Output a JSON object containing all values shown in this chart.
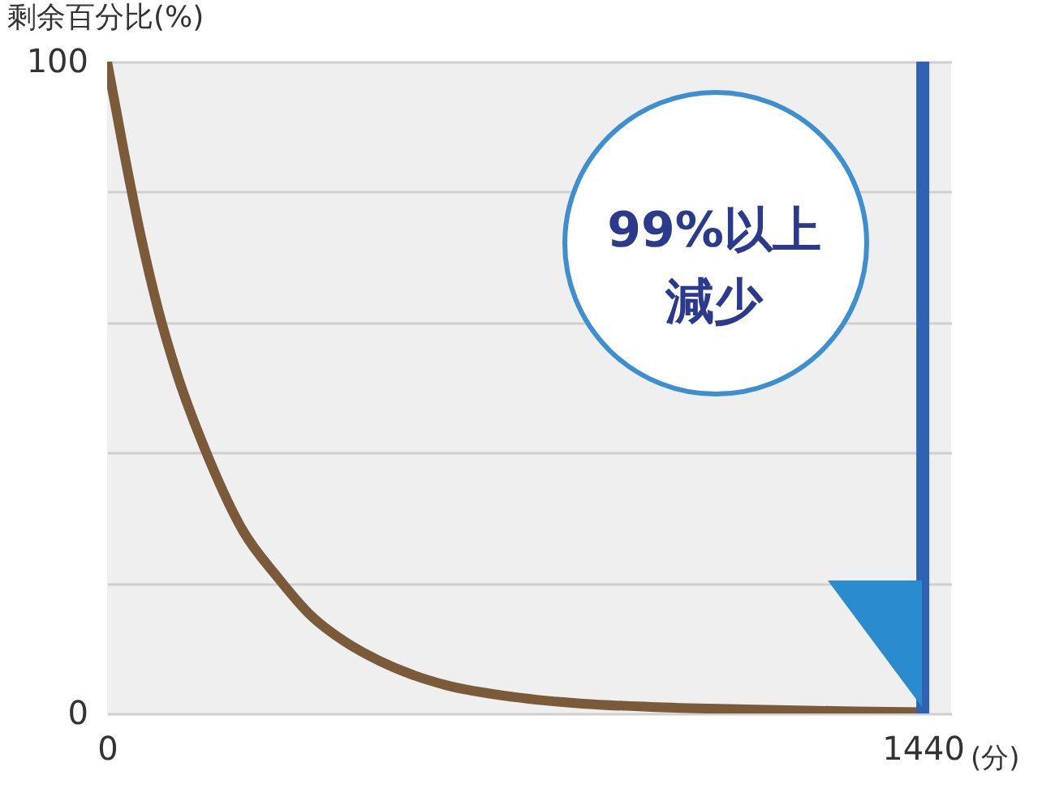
{
  "chart_data": {
    "type": "line",
    "ylabel": "剩余百分比(%)",
    "xlabel": "(分)",
    "x": [
      0,
      30,
      60,
      90,
      120,
      180,
      240,
      300,
      360,
      420,
      480,
      540,
      600,
      720,
      840,
      960,
      1080,
      1200,
      1320,
      1440
    ],
    "series": [
      {
        "color": "#7b5a3a",
        "values": [
          100,
          86,
          73,
          62,
          53,
          39,
          28,
          21,
          15,
          11,
          8.1,
          5.9,
          4.3,
          2.5,
          1.5,
          1.0,
          0.7,
          0.5,
          0.3,
          0.2
        ]
      }
    ],
    "xlim": [
      0,
      1490
    ],
    "xticks": [
      0,
      1440
    ],
    "ylim": [
      0,
      100
    ],
    "yticks": [
      0,
      {
        "value": 20,
        "label": null
      },
      {
        "value": 40,
        "label": null
      },
      {
        "value": 60,
        "label": null
      },
      {
        "value": 80,
        "label": null
      },
      100
    ],
    "grid": "y",
    "marker": "none",
    "line_style": "solid",
    "ref_lines": [
      {
        "axis": "x",
        "value": 1440,
        "color": "#2f62b3"
      }
    ],
    "annotations": [
      "99%以上",
      "減少"
    ]
  }
}
